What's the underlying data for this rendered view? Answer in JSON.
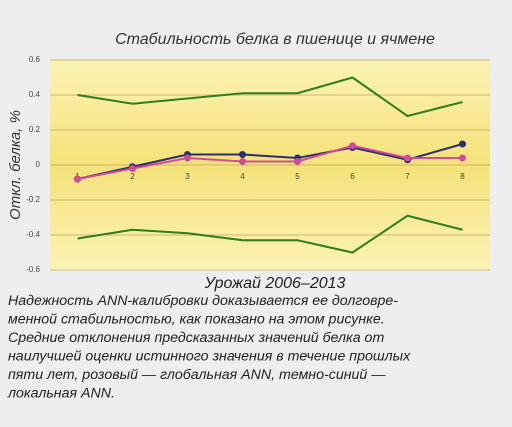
{
  "chart_data": {
    "type": "line",
    "title": "Стабильность белка в пшенице и ячмене",
    "x_label": "Урожай 2006–2013",
    "y_label": "Откл. белка, %",
    "categories": [
      "1",
      "2",
      "3",
      "4",
      "5",
      "6",
      "7",
      "8"
    ],
    "series": [
      {
        "color": "#2e7d1e",
        "marker": false,
        "values": [
          0.4,
          0.35,
          0.38,
          0.41,
          0.41,
          0.5,
          0.28,
          0.36
        ]
      },
      {
        "color": "#2e7d1e",
        "marker": false,
        "values": [
          -0.42,
          -0.37,
          -0.39,
          -0.43,
          -0.43,
          -0.5,
          -0.29,
          -0.37
        ]
      },
      {
        "color": "#2a2f6e",
        "marker": true,
        "values": [
          -0.08,
          -0.01,
          0.06,
          0.06,
          0.04,
          0.1,
          0.03,
          0.12
        ]
      },
      {
        "color": "#d24a9a",
        "marker": true,
        "values": [
          -0.08,
          -0.02,
          0.04,
          0.02,
          0.02,
          0.11,
          0.04,
          0.04
        ]
      }
    ],
    "ylim": [
      -0.6,
      0.6
    ],
    "yticks": [
      0.6,
      0.4,
      0.2,
      0,
      -0.2,
      -0.4,
      -0.6
    ],
    "grid": true,
    "caption": [
      "Надежность ANN-калибровки доказывается ее долговре-",
      "менной стабильностью, как показано на этом рисунке.",
      "Средние отклонения предсказанных значений белка от",
      "наилучшей оценки истинного значения в течение прошлых",
      "пяти лет, розовый — глобальная ANN, темно-синий —",
      "локальная ANN."
    ]
  }
}
